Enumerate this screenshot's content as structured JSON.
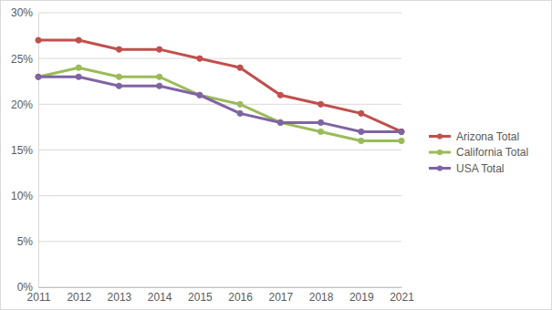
{
  "chart_data": {
    "type": "line",
    "categories": [
      "2011",
      "2012",
      "2013",
      "2014",
      "2015",
      "2016",
      "2017",
      "2018",
      "2019",
      "2021"
    ],
    "series": [
      {
        "name": "Arizona Total",
        "color": "#c0504d",
        "values": [
          27,
          27,
          26,
          26,
          25,
          24,
          21,
          20,
          19,
          17
        ]
      },
      {
        "name": "California Total",
        "color": "#9bbb59",
        "values": [
          23,
          24,
          23,
          23,
          21,
          20,
          18,
          17,
          16,
          16
        ]
      },
      {
        "name": "USA Total",
        "color": "#8064a2",
        "values": [
          23,
          23,
          22,
          22,
          21,
          19,
          18,
          18,
          17,
          17
        ]
      }
    ],
    "ylim": [
      0,
      30
    ],
    "yticks": [
      {
        "value": 0,
        "label": "0%"
      },
      {
        "value": 5,
        "label": "5%"
      },
      {
        "value": 10,
        "label": "10%"
      },
      {
        "value": 15,
        "label": "15%"
      },
      {
        "value": 20,
        "label": "20%"
      },
      {
        "value": 25,
        "label": "25%"
      },
      {
        "value": 30,
        "label": "30%"
      }
    ],
    "grid": true,
    "legend": "right",
    "marker": "circle",
    "line_style": "solid"
  }
}
